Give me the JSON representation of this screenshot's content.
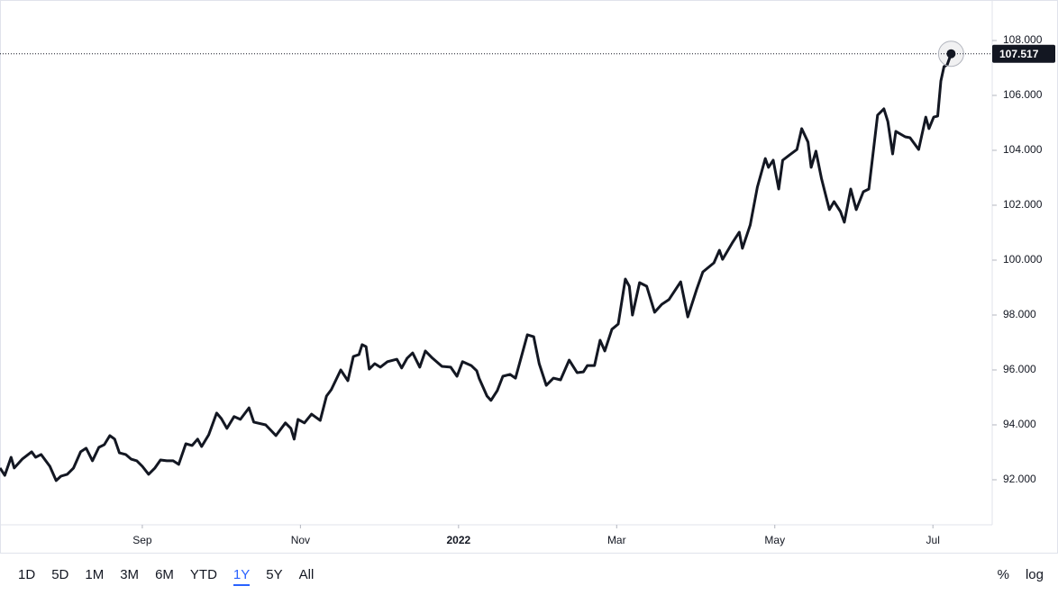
{
  "chart_data": {
    "type": "line",
    "color": "#131722",
    "x": [
      -1.8,
      -1.74,
      -1.66,
      -1.62,
      -1.52,
      -1.4,
      -1.35,
      -1.28,
      -1.17,
      -1.09,
      -1.03,
      -0.95,
      -0.87,
      -0.78,
      -0.71,
      -0.63,
      -0.55,
      -0.48,
      -0.41,
      -0.35,
      -0.29,
      -0.21,
      -0.14,
      -0.07,
      0,
      0.08,
      0.16,
      0.23,
      0.31,
      0.39,
      0.46,
      0.55,
      0.63,
      0.7,
      0.75,
      0.84,
      0.94,
      1.0,
      1.07,
      1.16,
      1.24,
      1.35,
      1.41,
      1.56,
      1.69,
      1.81,
      1.88,
      1.92,
      1.97,
      2.05,
      2.14,
      2.25,
      2.33,
      2.39,
      2.51,
      2.6,
      2.67,
      2.74,
      2.78,
      2.83,
      2.87,
      2.94,
      3.01,
      3.1,
      3.22,
      3.28,
      3.35,
      3.42,
      3.51,
      3.58,
      3.67,
      3.79,
      3.9,
      3.98,
      4.05,
      4.16,
      4.23,
      4.26,
      4.36,
      4.41,
      4.49,
      4.56,
      4.65,
      4.72,
      4.87,
      4.95,
      5.02,
      5.11,
      5.2,
      5.29,
      5.4,
      5.5,
      5.58,
      5.63,
      5.72,
      5.79,
      5.85,
      5.94,
      6.02,
      6.11,
      6.16,
      6.2,
      6.29,
      6.38,
      6.48,
      6.57,
      6.66,
      6.81,
      6.9,
      7.01,
      7.09,
      7.23,
      7.3,
      7.34,
      7.46,
      7.55,
      7.59,
      7.69,
      7.78,
      7.88,
      7.92,
      7.98,
      8.05,
      8.1,
      8.19,
      8.28,
      8.34,
      8.42,
      8.46,
      8.52,
      8.59,
      8.69,
      8.75,
      8.83,
      8.88,
      8.96,
      9.03,
      9.12,
      9.19,
      9.3,
      9.38,
      9.43,
      9.49,
      9.53,
      9.65,
      9.71,
      9.82,
      9.91,
      9.95,
      10.01,
      10.06,
      10.1,
      10.14,
      10.18,
      10.23
    ],
    "values": [
      92.43,
      92.16,
      92.82,
      92.43,
      92.75,
      93.02,
      92.82,
      92.92,
      92.49,
      91.97,
      92.13,
      92.2,
      92.43,
      93.02,
      93.15,
      92.69,
      93.18,
      93.28,
      93.61,
      93.48,
      92.98,
      92.92,
      92.75,
      92.69,
      92.49,
      92.2,
      92.43,
      92.72,
      92.69,
      92.69,
      92.56,
      93.31,
      93.25,
      93.48,
      93.21,
      93.64,
      94.43,
      94.23,
      93.87,
      94.3,
      94.2,
      94.62,
      94.1,
      94.0,
      93.61,
      94.07,
      93.87,
      93.48,
      94.2,
      94.07,
      94.39,
      94.16,
      95.05,
      95.28,
      96.0,
      95.61,
      96.49,
      96.56,
      96.92,
      96.85,
      96.03,
      96.23,
      96.1,
      96.3,
      96.39,
      96.07,
      96.43,
      96.62,
      96.1,
      96.69,
      96.43,
      96.13,
      96.1,
      95.77,
      96.3,
      96.16,
      95.97,
      95.7,
      95.05,
      94.89,
      95.25,
      95.77,
      95.84,
      95.7,
      97.28,
      97.21,
      96.23,
      95.44,
      95.7,
      95.64,
      96.36,
      95.9,
      95.93,
      96.16,
      96.16,
      97.08,
      96.69,
      97.48,
      97.67,
      99.31,
      99.05,
      98.0,
      99.18,
      99.05,
      98.1,
      98.39,
      98.56,
      99.21,
      97.93,
      98.92,
      99.57,
      99.9,
      100.36,
      100.03,
      100.62,
      101.02,
      100.43,
      101.28,
      102.66,
      103.7,
      103.38,
      103.64,
      102.59,
      103.64,
      103.84,
      104.03,
      104.79,
      104.3,
      103.38,
      103.97,
      102.98,
      101.84,
      102.13,
      101.77,
      101.38,
      102.59,
      101.84,
      102.49,
      102.59,
      105.28,
      105.51,
      105.05,
      103.87,
      104.69,
      104.49,
      104.46,
      104.03,
      105.21,
      104.79,
      105.21,
      105.25,
      106.52,
      107.05,
      107.11,
      107.517
    ],
    "last_price": 107.517,
    "xlim": [
      -1.8,
      10.75
    ],
    "xticks": [
      {
        "value": 0,
        "label": "Sep"
      },
      {
        "value": 2,
        "label": "Nov"
      },
      {
        "value": 4,
        "label": "2022"
      },
      {
        "value": 6,
        "label": "Mar"
      },
      {
        "value": 8,
        "label": "May"
      },
      {
        "value": 10,
        "label": "Jul"
      }
    ],
    "ylim": [
      90.36,
      109.475
    ],
    "yticks": [
      {
        "value": 92,
        "label": "92.000"
      },
      {
        "value": 94,
        "label": "94.000"
      },
      {
        "value": 96,
        "label": "96.000"
      },
      {
        "value": 98,
        "label": "98.000"
      },
      {
        "value": 100,
        "label": "100.000"
      },
      {
        "value": 102,
        "label": "102.000"
      },
      {
        "value": 104,
        "label": "104.000"
      },
      {
        "value": 106,
        "label": "106.000"
      },
      {
        "value": 108,
        "label": "108.000"
      }
    ],
    "ranges": [
      "1D",
      "5D",
      "1M",
      "3M",
      "6M",
      "YTD",
      "1Y",
      "5Y",
      "All"
    ],
    "active_range": "1Y",
    "scale_options": [
      "%",
      "log"
    ],
    "log_scale": false
  }
}
